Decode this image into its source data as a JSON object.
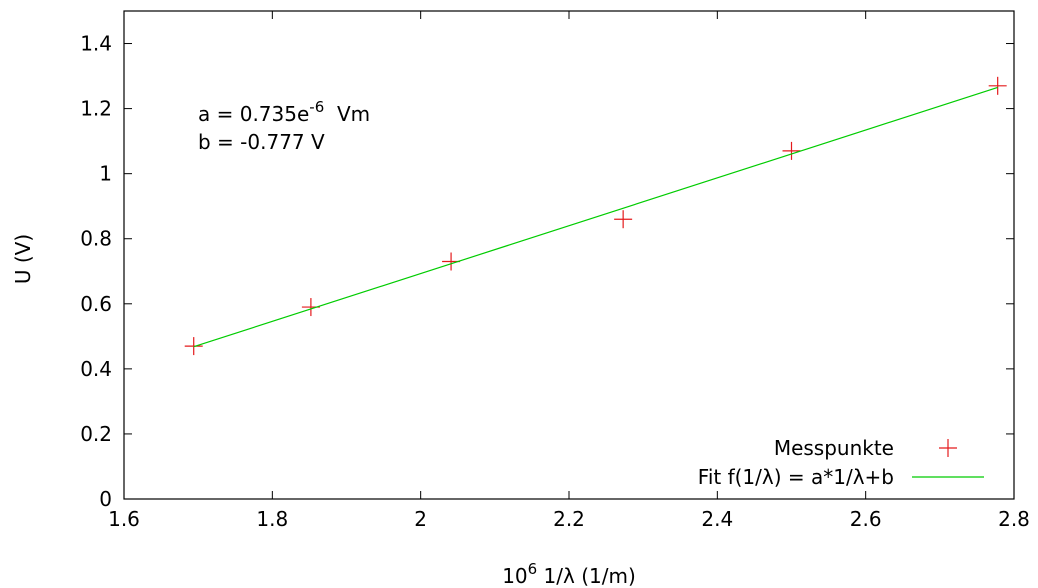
{
  "chart_data": {
    "type": "scatter",
    "title": "",
    "xlabel": {
      "base": "10",
      "exp": "6",
      "rest": " 1/λ (1/m)"
    },
    "ylabel": "U (V)",
    "xlim": [
      1.6,
      2.8
    ],
    "ylim": [
      0,
      1.5
    ],
    "xticks": [
      1.6,
      1.8,
      2.0,
      2.2,
      2.4,
      2.6,
      2.8
    ],
    "xtick_labels": [
      "1.6",
      "1.8",
      "2",
      "2.2",
      "2.4",
      "2.6",
      "2.8"
    ],
    "yticks": [
      0,
      0.2,
      0.4,
      0.6,
      0.8,
      1.0,
      1.2,
      1.4
    ],
    "ytick_labels": [
      "0",
      "0.2",
      "0.4",
      "0.6",
      "0.8",
      "1",
      "1.2",
      "1.4"
    ],
    "grid": false,
    "legend_position": "bottom-right",
    "series": [
      {
        "name": "Messpunkte",
        "kind": "points",
        "marker": "plus",
        "color": "#e41a1c",
        "x": [
          1.694,
          1.852,
          2.041,
          2.273,
          2.5,
          2.778
        ],
        "y": [
          0.47,
          0.59,
          0.73,
          0.86,
          1.07,
          1.27
        ]
      },
      {
        "name": "Fit f(1/λ) = a*1/λ+b",
        "kind": "line",
        "color": "#00cc00",
        "x": [
          1.694,
          2.778
        ],
        "y": [
          0.468,
          1.265
        ]
      }
    ],
    "annotations": {
      "a_prefix": "a = 0.735e",
      "a_exp": "-6",
      "a_unit": "  Vm",
      "b_text": "b = -0.777 V"
    }
  }
}
